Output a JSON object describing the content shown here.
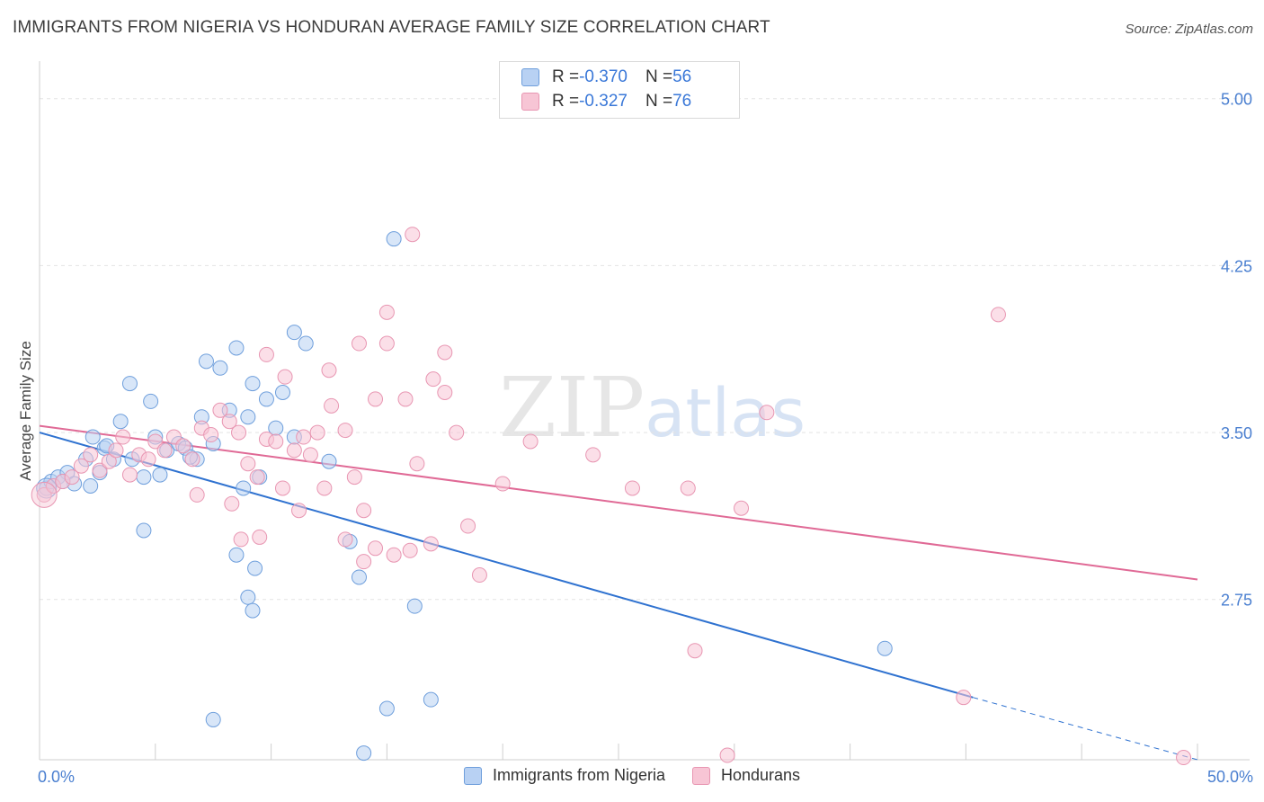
{
  "title": "IMMIGRANTS FROM NIGERIA VS HONDURAN AVERAGE FAMILY SIZE CORRELATION CHART",
  "source": "Source: ZipAtlas.com",
  "watermark": {
    "zip": "ZIP",
    "atlas": "atlas"
  },
  "legend": {
    "rows": [
      {
        "r_label": "R = ",
        "r_value": "-0.370",
        "n_label": "N = ",
        "n_value": "56"
      },
      {
        "r_label": "R = ",
        "r_value": "-0.327",
        "n_label": "N = ",
        "n_value": "76"
      }
    ]
  },
  "bottom_legend": [
    "Immigrants from Nigeria",
    "Hondurans"
  ],
  "colors": {
    "nigeria_fill": "#b8d1f3",
    "nigeria_stroke": "#6f9fdc",
    "nigeria_line": "#2f72d0",
    "honduran_fill": "#f7c5d5",
    "honduran_stroke": "#e896b2",
    "honduran_line": "#e06a96",
    "tick": "#4a7fd0",
    "grid": "#e3e3e3"
  },
  "chart_data": {
    "type": "scatter",
    "title": "IMMIGRANTS FROM NIGERIA VS HONDURAN AVERAGE FAMILY SIZE CORRELATION CHART",
    "xlabel": "",
    "ylabel": "Average Family Size",
    "xlim": [
      0,
      50
    ],
    "ylim": [
      2.03,
      5.12
    ],
    "x_tick_labels": [
      "0.0%",
      "50.0%"
    ],
    "y_ticks": [
      2.75,
      3.5,
      4.25,
      5.0
    ],
    "y_tick_labels": [
      "2.75",
      "3.50",
      "4.25",
      "5.00"
    ],
    "grid": true,
    "legend_position": "top-center",
    "series": [
      {
        "name": "Immigrants from Nigeria",
        "color": "#6f9fdc",
        "trend": {
          "x": [
            0,
            40.3
          ],
          "y": [
            3.5,
            2.31
          ],
          "dashed_to": [
            50,
            2.03
          ]
        },
        "points": [
          [
            0.3,
            3.25
          ],
          [
            0.5,
            3.28
          ],
          [
            0.8,
            3.3
          ],
          [
            1.2,
            3.32
          ],
          [
            1.5,
            3.27
          ],
          [
            2.0,
            3.38
          ],
          [
            2.3,
            3.48
          ],
          [
            2.8,
            3.43
          ],
          [
            3.2,
            3.38
          ],
          [
            3.5,
            3.55
          ],
          [
            4.0,
            3.38
          ],
          [
            2.2,
            3.26
          ],
          [
            2.6,
            3.32
          ],
          [
            4.5,
            3.3
          ],
          [
            5.0,
            3.48
          ],
          [
            5.5,
            3.42
          ],
          [
            6.0,
            3.45
          ],
          [
            6.3,
            3.43
          ],
          [
            6.8,
            3.38
          ],
          [
            7.0,
            3.57
          ],
          [
            7.5,
            3.45
          ],
          [
            8.2,
            3.6
          ],
          [
            8.8,
            3.25
          ],
          [
            9.0,
            3.57
          ],
          [
            9.5,
            3.3
          ],
          [
            9.8,
            3.65
          ],
          [
            10.2,
            3.52
          ],
          [
            11.0,
            3.48
          ],
          [
            4.8,
            3.64
          ],
          [
            3.9,
            3.72
          ],
          [
            7.2,
            3.82
          ],
          [
            7.8,
            3.79
          ],
          [
            8.5,
            3.88
          ],
          [
            9.2,
            3.72
          ],
          [
            10.5,
            3.68
          ],
          [
            11.5,
            3.9
          ],
          [
            11.0,
            3.95
          ],
          [
            12.5,
            3.37
          ],
          [
            13.4,
            3.01
          ],
          [
            13.8,
            2.85
          ],
          [
            14.0,
            2.06
          ],
          [
            15.0,
            2.26
          ],
          [
            15.3,
            4.37
          ],
          [
            16.2,
            2.72
          ],
          [
            16.9,
            2.3
          ],
          [
            7.5,
            2.21
          ],
          [
            9.0,
            2.76
          ],
          [
            9.2,
            2.7
          ],
          [
            9.3,
            2.89
          ],
          [
            4.5,
            3.06
          ],
          [
            6.5,
            3.39
          ],
          [
            5.2,
            3.31
          ],
          [
            1.0,
            3.28
          ],
          [
            2.9,
            3.44
          ],
          [
            8.5,
            2.95
          ],
          [
            36.5,
            2.53
          ]
        ]
      },
      {
        "name": "Hondurans",
        "color": "#e896b2",
        "trend": {
          "x": [
            0,
            50
          ],
          "y": [
            3.53,
            2.84
          ]
        },
        "points": [
          [
            0.2,
            3.22
          ],
          [
            0.6,
            3.26
          ],
          [
            1.0,
            3.28
          ],
          [
            1.4,
            3.3
          ],
          [
            1.8,
            3.35
          ],
          [
            2.2,
            3.4
          ],
          [
            2.6,
            3.33
          ],
          [
            3.0,
            3.37
          ],
          [
            3.3,
            3.42
          ],
          [
            3.6,
            3.48
          ],
          [
            3.9,
            3.31
          ],
          [
            4.3,
            3.4
          ],
          [
            4.7,
            3.38
          ],
          [
            5.0,
            3.46
          ],
          [
            5.4,
            3.42
          ],
          [
            5.8,
            3.48
          ],
          [
            6.2,
            3.44
          ],
          [
            6.6,
            3.38
          ],
          [
            7.0,
            3.52
          ],
          [
            7.4,
            3.49
          ],
          [
            7.8,
            3.6
          ],
          [
            8.2,
            3.55
          ],
          [
            8.6,
            3.5
          ],
          [
            9.0,
            3.36
          ],
          [
            9.4,
            3.3
          ],
          [
            9.8,
            3.47
          ],
          [
            10.2,
            3.46
          ],
          [
            10.6,
            3.75
          ],
          [
            11.0,
            3.42
          ],
          [
            11.4,
            3.48
          ],
          [
            12.0,
            3.5
          ],
          [
            12.6,
            3.62
          ],
          [
            13.2,
            3.51
          ],
          [
            13.6,
            3.3
          ],
          [
            14.0,
            3.15
          ],
          [
            14.5,
            3.65
          ],
          [
            15.0,
            3.9
          ],
          [
            15.8,
            3.65
          ],
          [
            16.3,
            3.36
          ],
          [
            17.0,
            3.74
          ],
          [
            17.5,
            3.86
          ],
          [
            18.0,
            3.5
          ],
          [
            18.5,
            3.08
          ],
          [
            19.0,
            2.86
          ],
          [
            20.0,
            3.27
          ],
          [
            6.8,
            3.22
          ],
          [
            8.3,
            3.18
          ],
          [
            8.7,
            3.02
          ],
          [
            9.5,
            3.03
          ],
          [
            10.5,
            3.25
          ],
          [
            11.2,
            3.15
          ],
          [
            11.7,
            3.4
          ],
          [
            12.3,
            3.25
          ],
          [
            13.2,
            3.02
          ],
          [
            14.0,
            2.92
          ],
          [
            14.5,
            2.98
          ],
          [
            15.3,
            2.95
          ],
          [
            16.0,
            2.97
          ],
          [
            16.9,
            3.0
          ],
          [
            9.8,
            3.85
          ],
          [
            12.5,
            3.78
          ],
          [
            13.8,
            3.9
          ],
          [
            15.0,
            4.04
          ],
          [
            16.1,
            4.39
          ],
          [
            17.5,
            3.68
          ],
          [
            21.2,
            3.46
          ],
          [
            23.9,
            3.4
          ],
          [
            25.6,
            3.25
          ],
          [
            28.3,
            2.52
          ],
          [
            30.3,
            3.16
          ],
          [
            31.4,
            3.59
          ],
          [
            39.9,
            2.31
          ],
          [
            41.4,
            4.03
          ],
          [
            28.0,
            3.25
          ],
          [
            29.7,
            2.05
          ],
          [
            49.4,
            2.04
          ]
        ]
      }
    ]
  }
}
